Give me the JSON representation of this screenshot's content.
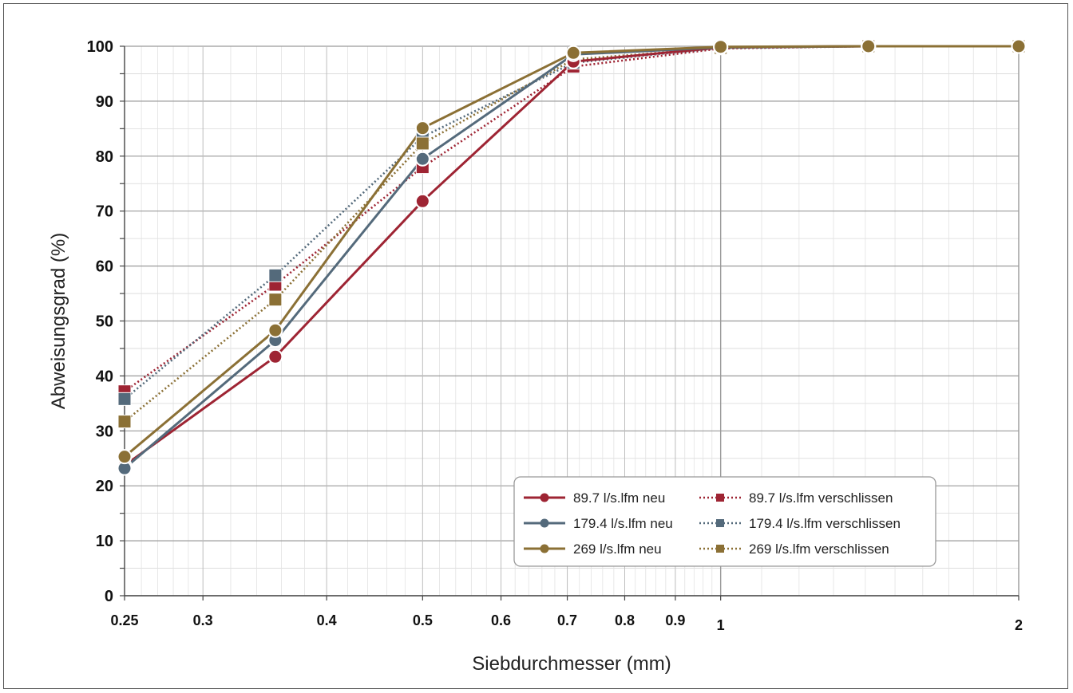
{
  "chart_data": {
    "type": "line",
    "title": "",
    "xlabel": "Siebdurchmesser (mm)",
    "ylabel": "Abweisungsgrad (%)",
    "x_scale": "log",
    "xlim": [
      0.25,
      2
    ],
    "ylim": [
      0,
      100
    ],
    "x_ticks": [
      {
        "value": 0.25,
        "label": "0.25"
      },
      {
        "value": 0.3,
        "label": "0.3"
      },
      {
        "value": 0.4,
        "label": "0.4"
      },
      {
        "value": 0.5,
        "label": "0.5"
      },
      {
        "value": 0.6,
        "label": "0.6"
      },
      {
        "value": 0.7,
        "label": "0.7"
      },
      {
        "value": 0.8,
        "label": "0.8"
      },
      {
        "value": 0.9,
        "label": "0.9"
      },
      {
        "value": 1,
        "label": "1"
      },
      {
        "value": 2,
        "label": "2"
      }
    ],
    "y_ticks": [
      0,
      10,
      20,
      30,
      40,
      50,
      60,
      70,
      80,
      90,
      100
    ],
    "grid": true,
    "legend_position": "bottom-right",
    "series": [
      {
        "name": "89.7 l/s.lfm neu",
        "style": "solid",
        "marker": "circle",
        "color": "#9e2433",
        "x": [
          0.25,
          0.355,
          0.5,
          0.71,
          1,
          1.41,
          2
        ],
        "y": [
          23.7,
          43.5,
          71.8,
          97.2,
          99.8,
          100,
          100
        ]
      },
      {
        "name": "179.4 l/s.lfm neu",
        "style": "solid",
        "marker": "circle",
        "color": "#546a7b",
        "x": [
          0.25,
          0.355,
          0.5,
          0.71,
          1,
          1.41,
          2
        ],
        "y": [
          23.2,
          46.5,
          79.5,
          98.5,
          99.8,
          100,
          100
        ]
      },
      {
        "name": "269 l/s.lfm neu",
        "style": "solid",
        "marker": "circle",
        "color": "#8b7035",
        "x": [
          0.25,
          0.355,
          0.5,
          0.71,
          1,
          1.41,
          2
        ],
        "y": [
          25.3,
          48.3,
          85.1,
          98.8,
          99.9,
          100,
          100
        ]
      },
      {
        "name": "89.7 l/s.lfm verschlissen",
        "style": "dotted",
        "marker": "square",
        "color": "#9e2433",
        "x": [
          0.25,
          0.355,
          0.5,
          0.71,
          1,
          1.41,
          2
        ],
        "y": [
          37.2,
          56.6,
          78.0,
          96.3,
          99.6,
          100,
          100
        ]
      },
      {
        "name": "179.4 l/s.lfm verschlissen",
        "style": "dotted",
        "marker": "square",
        "color": "#546a7b",
        "x": [
          0.25,
          0.355,
          0.5,
          0.71,
          1,
          1.41,
          2
        ],
        "y": [
          35.8,
          58.3,
          83.5,
          97.0,
          99.7,
          100,
          100
        ]
      },
      {
        "name": "269 l/s.lfm verschlissen",
        "style": "dotted",
        "marker": "square",
        "color": "#8b7035",
        "x": [
          0.25,
          0.355,
          0.5,
          0.71,
          1,
          1.41,
          2
        ],
        "y": [
          31.7,
          53.9,
          82.3,
          97.6,
          99.7,
          100,
          100
        ]
      }
    ]
  }
}
